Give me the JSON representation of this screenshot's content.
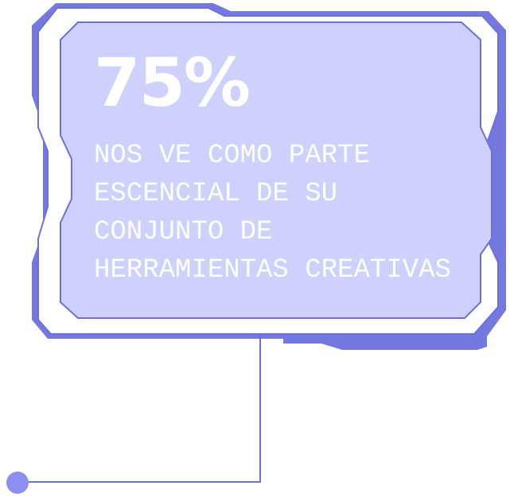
{
  "stat": {
    "value": "75%",
    "caption_lines": [
      "NOS VE COMO PARTE",
      "ESCENCIAL DE SU",
      "CONJUNTO DE",
      "HERRAMIENTAS CREATIVAS"
    ]
  },
  "colors": {
    "accent": "#7479e0",
    "panel_fill": "#cdd1fb",
    "stroke": "#6b70dc",
    "text": "#ffffff",
    "dot": "#8a8ff0"
  }
}
